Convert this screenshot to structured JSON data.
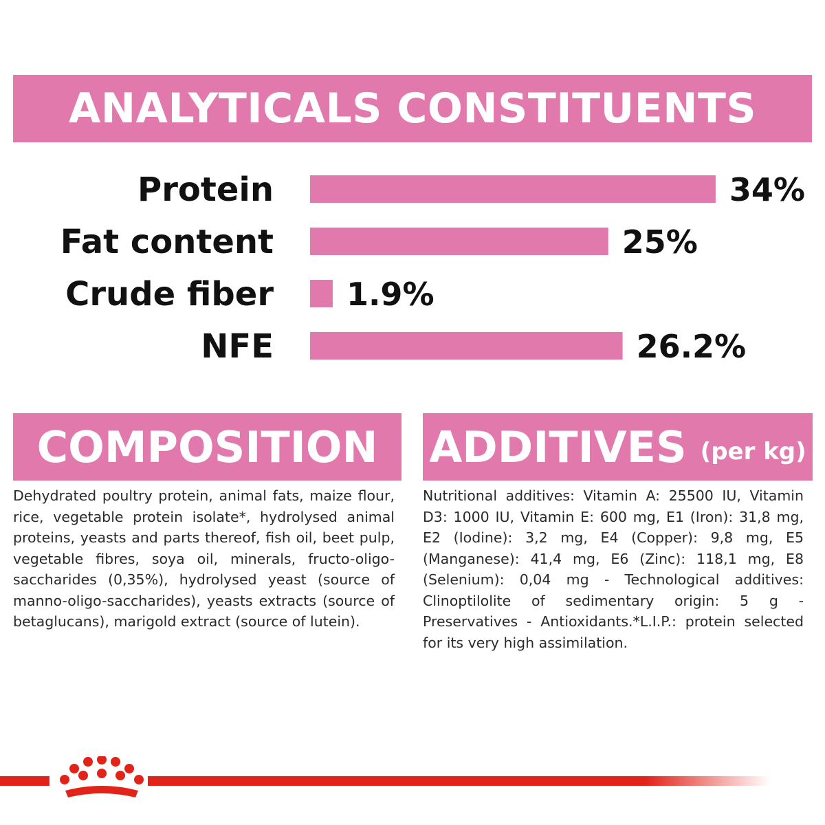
{
  "header": {
    "title": "ANALYTICALS CONSTITUENTS"
  },
  "chart_data": {
    "type": "bar",
    "orientation": "horizontal",
    "title": "ANALYTICALS CONSTITUENTS",
    "categories": [
      "Protein",
      "Fat content",
      "Crude fiber",
      "NFE"
    ],
    "values": [
      34,
      25,
      1.9,
      26.2
    ],
    "value_labels": [
      "34%",
      "25%",
      "1.9%",
      "26.2%"
    ],
    "bar_color": "#e279ad",
    "grid": false
  },
  "composition": {
    "heading": "COMPOSITION",
    "text": "Dehydrated poultry protein, animal fats, maize flour, rice, vegetable protein isolate*, hydrolysed animal proteins, yeasts and parts thereof, fish oil, beet pulp, vegetable fibres, soya oil, minerals, fructo-oligo-saccharides (0,35%), hydrolysed yeast (source of manno-oligo-saccharides), yeasts extracts (source of betaglucans), marigold extract (source of lutein)."
  },
  "additives": {
    "heading": "ADDITIVES",
    "sub": "(per kg)",
    "text": "Nutritional additives: Vitamin A: 25500 IU, Vitamin D3: 1000 IU, Vitamin E: 600 mg, E1 (Iron): 31,8 mg, E2 (Iodine): 3,2 mg, E4 (Copper): 9,8 mg, E5 (Manganese): 41,4 mg, E6 (Zinc): 118,1 mg, E8 (Selenium): 0,04 mg - Technological additives: Clinoptilolite of sedimentary origin: 5 g - Preservatives - Antioxidants.*L.I.P.: protein selected for its very high assimilation."
  },
  "footer": {
    "logo": "crown-logo-icon",
    "line_color": "#e2231a"
  }
}
